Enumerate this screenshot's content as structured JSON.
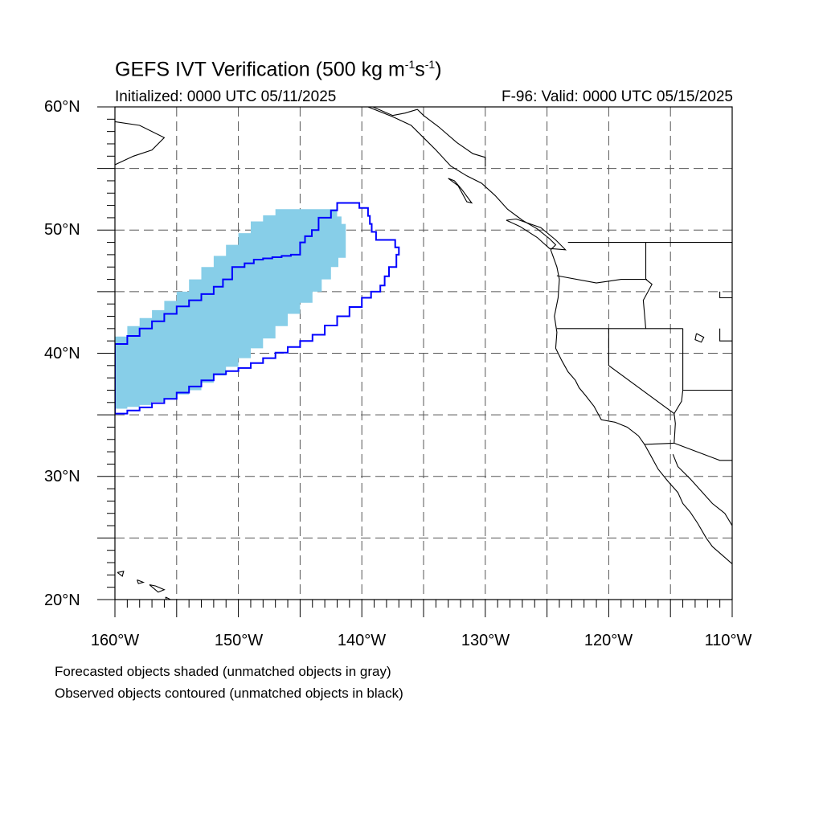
{
  "header": {
    "title_prefix": "GEFS IVT Verification (500 kg m",
    "title_exp1": "-1",
    "title_mid": "s",
    "title_exp2": "-1",
    "title_suffix": ")",
    "initialized": "Initialized: 0000 UTC 05/11/2025",
    "valid": "F-96: Valid: 0000 UTC 05/15/2025"
  },
  "map": {
    "lon_range": [
      -160,
      -110
    ],
    "lat_range": [
      20,
      60
    ],
    "lat_labels": [
      "60°N",
      "50°N",
      "40°N",
      "30°N",
      "20°N"
    ],
    "lon_labels": [
      "160°W",
      "150°W",
      "140°W",
      "130°W",
      "120°W",
      "110°W"
    ],
    "gridlines": "dashed every 5 degrees",
    "colors": {
      "forecast_fill": "#87CEE8",
      "observed_contour": "#0000FF",
      "coastline": "#000000"
    }
  },
  "forecast_object": {
    "label": "Forecasted object (matched)",
    "polygon_lonlat": [
      [
        -160,
        35.5
      ],
      [
        -158,
        35.8
      ],
      [
        -156,
        36.3
      ],
      [
        -154,
        37.0
      ],
      [
        -152,
        38.2
      ],
      [
        -150,
        39.6
      ],
      [
        -148,
        41.2
      ],
      [
        -146,
        43.2
      ],
      [
        -144,
        45.0
      ],
      [
        -142.5,
        47.0
      ],
      [
        -141.3,
        48.5
      ],
      [
        -141.3,
        50.5
      ],
      [
        -142,
        51.7
      ],
      [
        -146,
        51.7
      ],
      [
        -148,
        50.7
      ],
      [
        -150,
        48.8
      ],
      [
        -152,
        47.0
      ],
      [
        -154,
        45.0
      ],
      [
        -156,
        43.5
      ],
      [
        -158,
        42.2
      ],
      [
        -160,
        40.5
      ]
    ]
  },
  "observed_object": {
    "label": "Observed object (matched)",
    "polygon_lonlat": [
      [
        -160,
        35.1
      ],
      [
        -158,
        35.6
      ],
      [
        -156,
        36.3
      ],
      [
        -154,
        37.3
      ],
      [
        -152,
        38.3
      ],
      [
        -150,
        38.8
      ],
      [
        -148,
        39.6
      ],
      [
        -146,
        40.5
      ],
      [
        -144,
        41.5
      ],
      [
        -142,
        43.0
      ],
      [
        -140,
        44.5
      ],
      [
        -138.5,
        45.5
      ],
      [
        -137.8,
        47.0
      ],
      [
        -137.2,
        48.0
      ],
      [
        -137,
        48.6
      ],
      [
        -137.3,
        49.2
      ],
      [
        -138.5,
        49.2
      ],
      [
        -139.2,
        50.5
      ],
      [
        -139.5,
        51.8
      ],
      [
        -140.2,
        52.2
      ],
      [
        -141.5,
        52.2
      ],
      [
        -142.5,
        51.0
      ],
      [
        -143.5,
        50.0
      ],
      [
        -144.6,
        49.0
      ],
      [
        -145,
        48.0
      ],
      [
        -146.5,
        47.8
      ],
      [
        -148,
        47.6
      ],
      [
        -149.5,
        47.0
      ],
      [
        -150.5,
        46.0
      ],
      [
        -152,
        44.8
      ],
      [
        -154,
        43.8
      ],
      [
        -156,
        42.6
      ],
      [
        -158,
        41.4
      ],
      [
        -160,
        40.1
      ]
    ]
  },
  "legend": {
    "line1": "Forecasted objects shaded (unmatched objects in gray)",
    "line2": "Observed objects contoured (unmatched objects in black)"
  }
}
